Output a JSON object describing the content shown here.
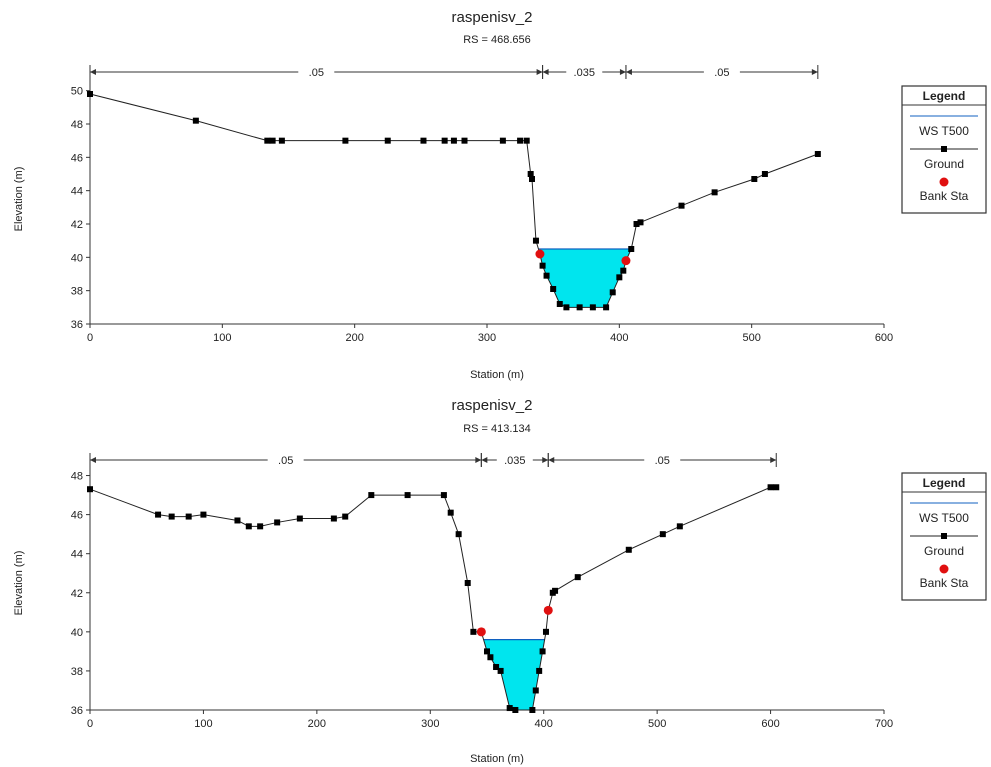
{
  "chart_data": [
    {
      "type": "line",
      "title": "raspenisv_2",
      "subtitle": "RS = 468.656",
      "xlabel": "Station (m)",
      "ylabel": "Elevation (m)",
      "xlim": [
        0,
        600
      ],
      "ylim": [
        36,
        51
      ],
      "xticks": [
        0,
        100,
        200,
        300,
        400,
        500,
        600
      ],
      "yticks": [
        36,
        38,
        40,
        42,
        44,
        46,
        48,
        50
      ],
      "grid": false,
      "legend_position": "right",
      "legend": {
        "title": "Legend",
        "items": [
          "WS T500",
          "Ground",
          "Bank Sta"
        ]
      },
      "mannings": [
        {
          "value": ".05",
          "from": 0,
          "to": 342
        },
        {
          "value": ".035",
          "from": 342,
          "to": 405
        },
        {
          "value": ".05",
          "from": 405,
          "to": 550
        }
      ],
      "water_surface": {
        "name": "WS T500",
        "elevation": 40.5
      },
      "bank_stations": [
        {
          "x": 340,
          "y": 40.2
        },
        {
          "x": 405,
          "y": 39.8
        }
      ],
      "series": [
        {
          "name": "Ground",
          "points": [
            [
              0,
              49.8
            ],
            [
              80,
              48.2
            ],
            [
              134,
              47.0
            ],
            [
              138,
              47.0
            ],
            [
              145,
              47.0
            ],
            [
              193,
              47.0
            ],
            [
              225,
              47.0
            ],
            [
              252,
              47.0
            ],
            [
              268,
              47.0
            ],
            [
              275,
              47.0
            ],
            [
              283,
              47.0
            ],
            [
              312,
              47.0
            ],
            [
              325,
              47.0
            ],
            [
              330,
              47.0
            ],
            [
              333,
              45.0
            ],
            [
              334,
              44.7
            ],
            [
              337,
              41.0
            ],
            [
              340,
              40.2
            ],
            [
              342,
              39.5
            ],
            [
              345,
              38.9
            ],
            [
              350,
              38.1
            ],
            [
              355,
              37.2
            ],
            [
              360,
              37.0
            ],
            [
              370,
              37.0
            ],
            [
              380,
              37.0
            ],
            [
              390,
              37.0
            ],
            [
              395,
              37.9
            ],
            [
              400,
              38.8
            ],
            [
              403,
              39.2
            ],
            [
              405,
              39.8
            ],
            [
              409,
              40.5
            ],
            [
              413,
              42.0
            ],
            [
              416,
              42.1
            ],
            [
              447,
              43.1
            ],
            [
              472,
              43.9
            ],
            [
              502,
              44.7
            ],
            [
              510,
              45.0
            ],
            [
              550,
              46.2
            ]
          ]
        }
      ]
    },
    {
      "type": "line",
      "title": "raspenisv_2",
      "subtitle": "RS = 413.134",
      "xlabel": "Station (m)",
      "ylabel": "Elevation (m)",
      "xlim": [
        0,
        700
      ],
      "ylim": [
        36,
        49
      ],
      "xticks": [
        0,
        100,
        200,
        300,
        400,
        500,
        600,
        700
      ],
      "yticks": [
        36,
        38,
        40,
        42,
        44,
        46,
        48
      ],
      "grid": false,
      "legend_position": "right",
      "legend": {
        "title": "Legend",
        "items": [
          "WS T500",
          "Ground",
          "Bank Sta"
        ]
      },
      "mannings": [
        {
          "value": ".05",
          "from": 0,
          "to": 345
        },
        {
          "value": ".035",
          "from": 345,
          "to": 404
        },
        {
          "value": ".05",
          "from": 404,
          "to": 605
        }
      ],
      "water_surface": {
        "name": "WS T500",
        "elevation": 39.6
      },
      "bank_stations": [
        {
          "x": 345,
          "y": 40.0
        },
        {
          "x": 404,
          "y": 41.1
        }
      ],
      "series": [
        {
          "name": "Ground",
          "points": [
            [
              0,
              47.3
            ],
            [
              60,
              46.0
            ],
            [
              72,
              45.9
            ],
            [
              87,
              45.9
            ],
            [
              100,
              46.0
            ],
            [
              130,
              45.7
            ],
            [
              140,
              45.4
            ],
            [
              150,
              45.4
            ],
            [
              165,
              45.6
            ],
            [
              185,
              45.8
            ],
            [
              215,
              45.8
            ],
            [
              225,
              45.9
            ],
            [
              248,
              47.0
            ],
            [
              280,
              47.0
            ],
            [
              312,
              47.0
            ],
            [
              318,
              46.1
            ],
            [
              325,
              45.0
            ],
            [
              333,
              42.5
            ],
            [
              338,
              40.0
            ],
            [
              345,
              40.0
            ],
            [
              350,
              39.0
            ],
            [
              353,
              38.7
            ],
            [
              358,
              38.2
            ],
            [
              362,
              38.0
            ],
            [
              370,
              36.1
            ],
            [
              375,
              36.0
            ],
            [
              390,
              36.0
            ],
            [
              393,
              37.0
            ],
            [
              396,
              38.0
            ],
            [
              399,
              39.0
            ],
            [
              402,
              40.0
            ],
            [
              404,
              41.1
            ],
            [
              408,
              42.0
            ],
            [
              410,
              42.1
            ],
            [
              430,
              42.8
            ],
            [
              475,
              44.2
            ],
            [
              505,
              45.0
            ],
            [
              520,
              45.4
            ],
            [
              600,
              47.4
            ],
            [
              605,
              47.4
            ]
          ]
        }
      ]
    }
  ]
}
